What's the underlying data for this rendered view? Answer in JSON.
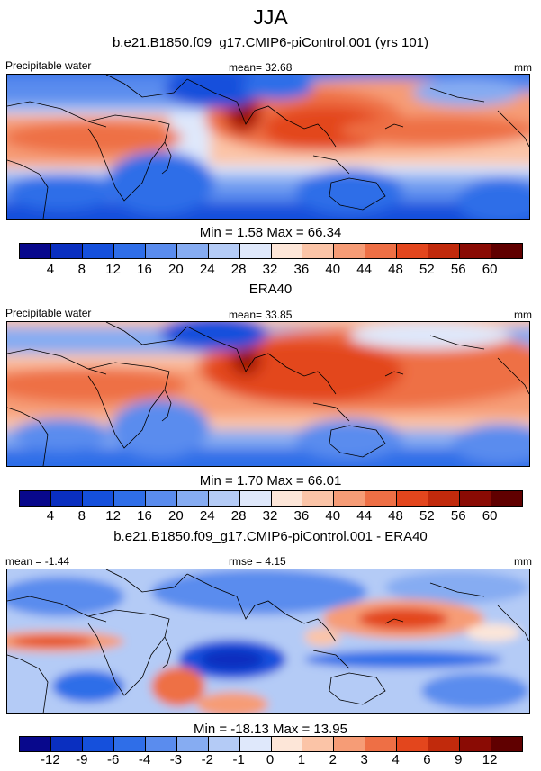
{
  "figure": {
    "title": "JJA",
    "units": "mm",
    "variable_label": "Precipitable water"
  },
  "panels": [
    {
      "id": "model",
      "header": "b.e21.B1850.f09_g17.CMIP6-piControl.001 (yrs 101)",
      "left_label": "Precipitable water",
      "center_label": "mean=  32.68",
      "right_label": "mm",
      "stats": "Min =   1.58 Max =  66.34"
    },
    {
      "id": "obs",
      "header": "ERA40",
      "left_label": "Precipitable water",
      "center_label": "mean=  33.85",
      "right_label": "mm",
      "stats": "Min =   1.70 Max =  66.01"
    },
    {
      "id": "diff",
      "header": "b.e21.B1850.f09_g17.CMIP6-piControl.001 - ERA40",
      "left_label": "mean =  -1.44",
      "center_label": "rmse =   4.15",
      "right_label": "mm",
      "stats": "Min = -18.13 Max =  13.95"
    }
  ],
  "colorbars": {
    "abs": {
      "ticks": [
        "4",
        "8",
        "12",
        "16",
        "20",
        "24",
        "28",
        "32",
        "36",
        "40",
        "44",
        "48",
        "52",
        "56",
        "60"
      ],
      "colors": [
        "#08088c",
        "#0a2fc0",
        "#1550dc",
        "#2f6ee8",
        "#5a8cee",
        "#86acf2",
        "#b4cbf6",
        "#dfe8fb",
        "#fde6d8",
        "#fbc4a7",
        "#f69c76",
        "#ee6f45",
        "#e3461d",
        "#c12a0c",
        "#8a0b04",
        "#600000"
      ]
    },
    "diff": {
      "ticks": [
        "-12",
        "-9",
        "-6",
        "-4",
        "-3",
        "-2",
        "-1",
        "0",
        "1",
        "2",
        "3",
        "4",
        "6",
        "9",
        "12"
      ],
      "colors": [
        "#08088c",
        "#0a2fc0",
        "#1550dc",
        "#2f6ee8",
        "#5a8cee",
        "#86acf2",
        "#b4cbf6",
        "#dfe8fb",
        "#fde6d8",
        "#fbc4a7",
        "#f69c76",
        "#ee6f45",
        "#e3461d",
        "#c12a0c",
        "#8a0b04",
        "#600000"
      ]
    }
  }
}
